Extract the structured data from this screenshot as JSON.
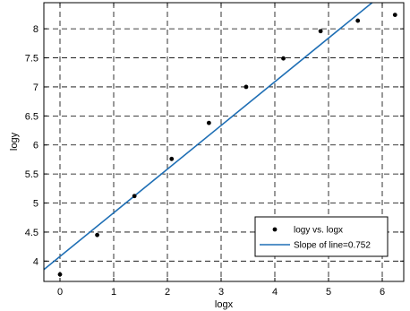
{
  "chart_data": {
    "type": "scatter",
    "title": "",
    "xlabel": "logx",
    "ylabel": "logy",
    "xlim": [
      -0.3,
      6.4
    ],
    "ylim": [
      3.65,
      8.45
    ],
    "xticks": [
      0,
      1,
      2,
      3,
      4,
      5,
      6
    ],
    "yticks": [
      4,
      4.5,
      5,
      5.5,
      6,
      6.5,
      7,
      7.5,
      8
    ],
    "xtick_labels": [
      "0",
      "1",
      "2",
      "3",
      "4",
      "5",
      "6"
    ],
    "ytick_labels": [
      "4",
      "4.5",
      "5",
      "5.5",
      "6",
      "6.5",
      "7",
      "7.5",
      "8"
    ],
    "grid": true,
    "legend_position": "lower-right",
    "series": [
      {
        "name": "logy vs. logx",
        "kind": "scatter",
        "color": "#000000",
        "x": [
          0,
          0.693,
          1.386,
          2.079,
          2.773,
          3.466,
          4.159,
          4.852,
          5.545,
          6.238
        ],
        "y": [
          3.77,
          4.45,
          5.12,
          5.76,
          6.38,
          7.0,
          7.49,
          7.96,
          8.14,
          8.24
        ]
      },
      {
        "name": "Slope of line=0.752",
        "kind": "line",
        "color": "#1f6fb5",
        "slope": 0.752,
        "intercept": 4.08
      }
    ]
  }
}
